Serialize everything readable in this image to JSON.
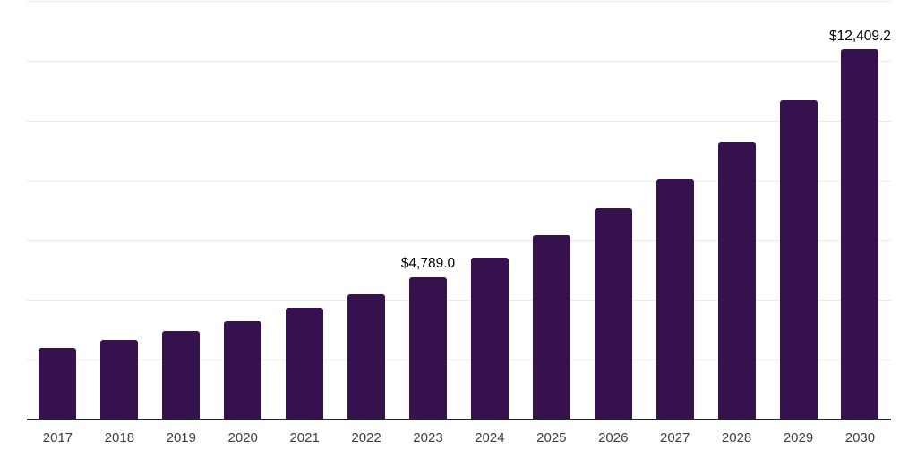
{
  "chart_data": {
    "type": "bar",
    "categories": [
      "2017",
      "2018",
      "2019",
      "2020",
      "2021",
      "2022",
      "2023",
      "2024",
      "2025",
      "2026",
      "2027",
      "2028",
      "2029",
      "2030"
    ],
    "values": [
      2410,
      2680,
      2980,
      3320,
      3760,
      4210,
      4789.0,
      5430,
      6180,
      7080,
      8090,
      9310,
      10710,
      12409.2
    ],
    "bar_labels": [
      "",
      "",
      "",
      "",
      "",
      "",
      "$4,789.0",
      "",
      "",
      "",
      "",
      "",
      "",
      "$12,409.2"
    ],
    "ylim": [
      0,
      14000
    ],
    "gridline_step": 2000,
    "grid": "horizontal-gridlines",
    "legend": "none",
    "y_axis_tick_labels_visible": false,
    "colors": {
      "bar": "#35124E",
      "background": "#ffffff",
      "gridline": "#ececec",
      "axis_line": "#262626",
      "tick_label": "#3d3d3d",
      "data_label": "#000000"
    }
  }
}
